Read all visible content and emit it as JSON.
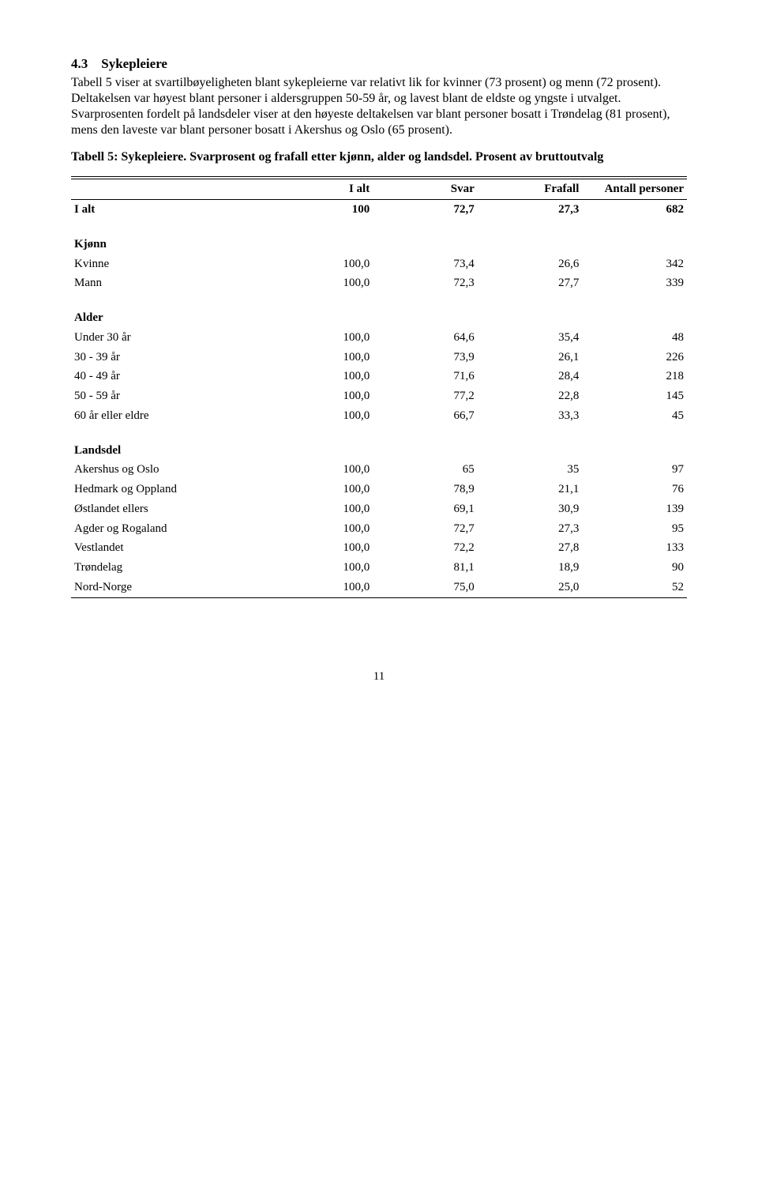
{
  "section": {
    "number": "4.3",
    "title": "Sykepleiere"
  },
  "paragraph": "Tabell 5 viser at svartilbøyeligheten blant sykepleierne var relativt lik for kvinner (73 prosent) og menn (72 prosent). Deltakelsen var høyest blant personer i aldersgruppen 50-59 år, og lavest blant de eldste og yngste i utvalget. Svarprosenten fordelt på landsdeler viser at den høyeste deltakelsen var blant personer bosatt i Trøndelag (81 prosent), mens den laveste var blant personer bosatt i Akershus og Oslo (65 prosent).",
  "table_caption": "Tabell 5: Sykepleiere. Svarprosent og frafall etter kjønn, alder og landsdel. Prosent av bruttoutvalg",
  "headers": {
    "c1": "I alt",
    "c2": "Svar",
    "c3": "Frafall",
    "c4": "Antall personer"
  },
  "total_row": {
    "label": "I alt",
    "c1": "100",
    "c2": "72,7",
    "c3": "27,3",
    "c4": "682"
  },
  "groups": [
    {
      "label": "Kjønn",
      "rows": [
        {
          "label": "Kvinne",
          "c1": "100,0",
          "c2": "73,4",
          "c3": "26,6",
          "c4": "342"
        },
        {
          "label": "Mann",
          "c1": "100,0",
          "c2": "72,3",
          "c3": "27,7",
          "c4": "339"
        }
      ]
    },
    {
      "label": "Alder",
      "rows": [
        {
          "label": "Under 30 år",
          "c1": "100,0",
          "c2": "64,6",
          "c3": "35,4",
          "c4": "48"
        },
        {
          "label": "30 - 39 år",
          "c1": "100,0",
          "c2": "73,9",
          "c3": "26,1",
          "c4": "226"
        },
        {
          "label": "40 - 49 år",
          "c1": "100,0",
          "c2": "71,6",
          "c3": "28,4",
          "c4": "218"
        },
        {
          "label": "50 - 59 år",
          "c1": "100,0",
          "c2": "77,2",
          "c3": "22,8",
          "c4": "145"
        },
        {
          "label": "60 år eller eldre",
          "c1": "100,0",
          "c2": "66,7",
          "c3": "33,3",
          "c4": "45"
        }
      ]
    },
    {
      "label": "Landsdel",
      "rows": [
        {
          "label": "Akershus og Oslo",
          "c1": "100,0",
          "c2": "65",
          "c3": "35",
          "c4": "97"
        },
        {
          "label": "Hedmark og Oppland",
          "c1": "100,0",
          "c2": "78,9",
          "c3": "21,1",
          "c4": "76"
        },
        {
          "label": "Østlandet ellers",
          "c1": "100,0",
          "c2": "69,1",
          "c3": "30,9",
          "c4": "139"
        },
        {
          "label": "Agder og Rogaland",
          "c1": "100,0",
          "c2": "72,7",
          "c3": "27,3",
          "c4": "95"
        },
        {
          "label": "Vestlandet",
          "c1": "100,0",
          "c2": "72,2",
          "c3": "27,8",
          "c4": "133"
        },
        {
          "label": "Trøndelag",
          "c1": "100,0",
          "c2": "81,1",
          "c3": "18,9",
          "c4": "90"
        },
        {
          "label": "Nord-Norge",
          "c1": "100,0",
          "c2": "75,0",
          "c3": "25,0",
          "c4": "52"
        }
      ]
    }
  ],
  "page_number": "11"
}
